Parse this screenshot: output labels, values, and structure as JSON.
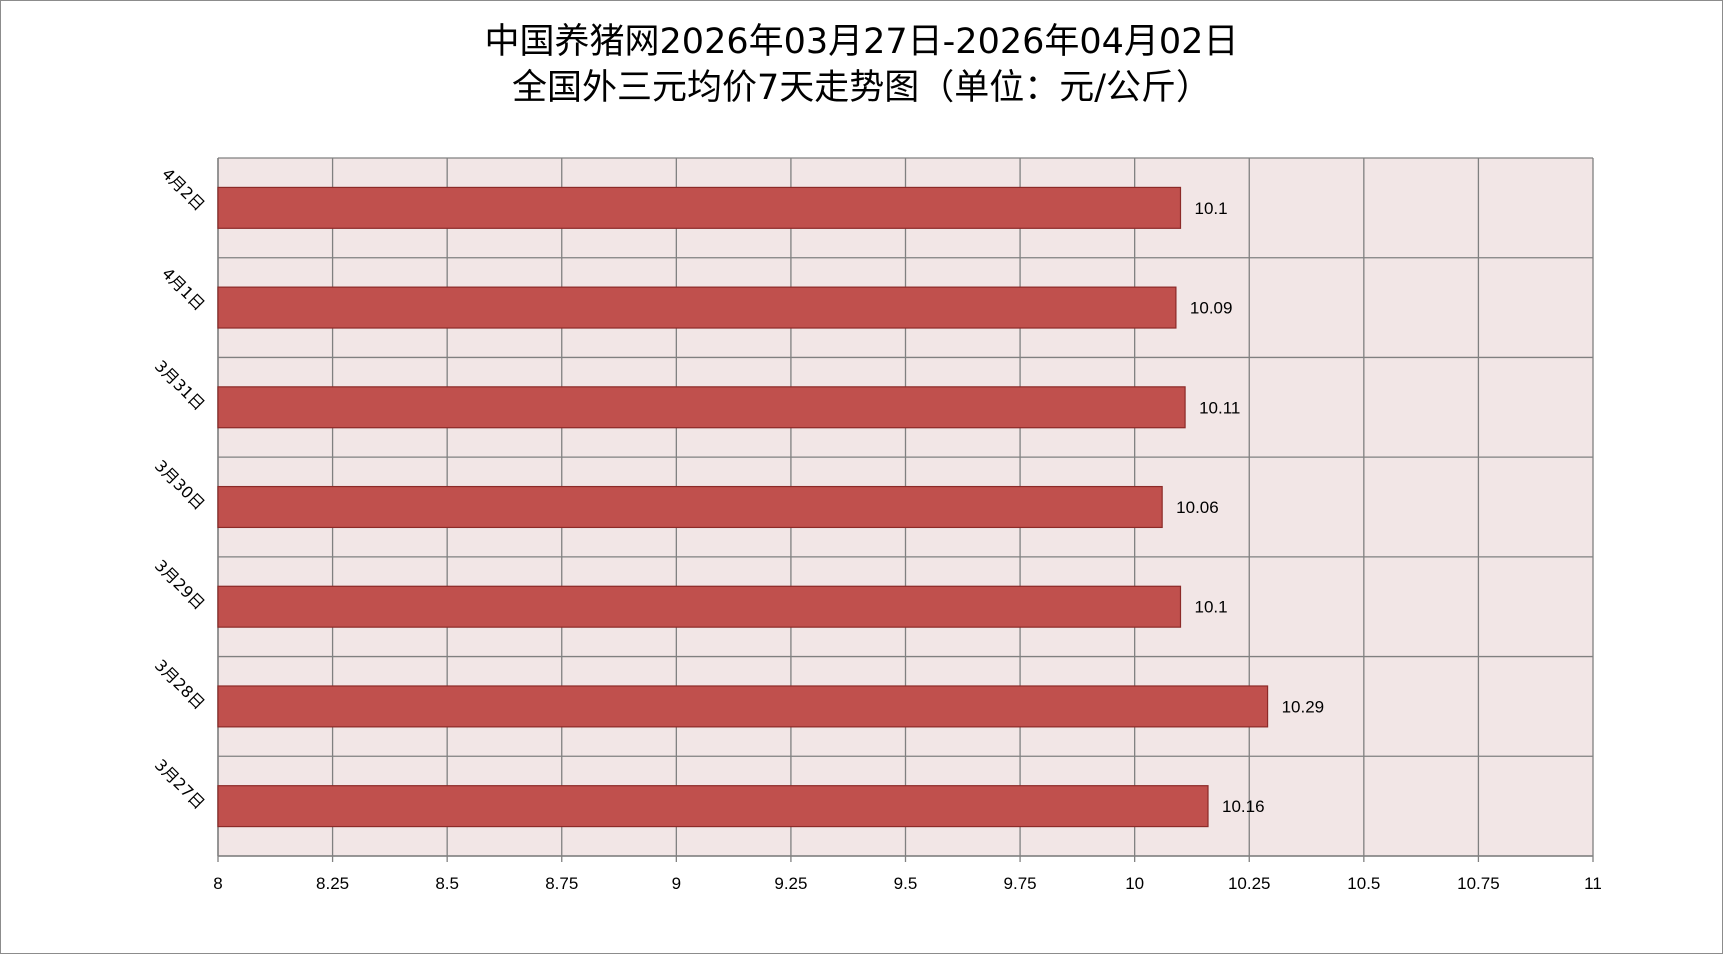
{
  "chart_data": {
    "type": "bar",
    "orientation": "horizontal",
    "title": [
      "中国养猪网2026年03月27日-2026年04月02日",
      "全国外三元均价7天走势图（单位：元/公斤）"
    ],
    "categories": [
      "3月27日",
      "3月28日",
      "3月29日",
      "3月30日",
      "3月31日",
      "4月1日",
      "4月2日"
    ],
    "values": [
      10.16,
      10.29,
      10.1,
      10.06,
      10.11,
      10.09,
      10.1
    ],
    "data_labels": [
      "10.16",
      "10.29",
      "10.1",
      "10.06",
      "10.11",
      "10.09",
      "10.1"
    ],
    "xlim": [
      8,
      11
    ],
    "xticks": [
      "8",
      "8.25",
      "8.5",
      "8.75",
      "9",
      "9.25",
      "9.5",
      "9.75",
      "10",
      "10.25",
      "10.5",
      "10.75",
      "11"
    ],
    "xlabel": "",
    "ylabel": "",
    "grid": true,
    "legend": "none",
    "colors": {
      "bar": "#C0504D",
      "bar_border": "#8C2A28",
      "plot_background": "#F2E6E6",
      "grid": "#808080"
    }
  }
}
